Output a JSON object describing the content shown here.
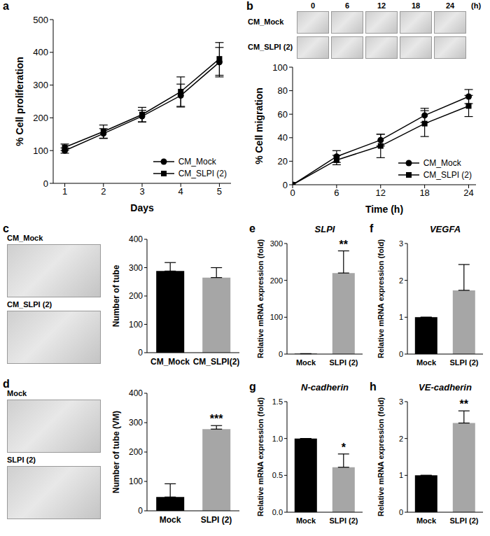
{
  "images": {
    "b": {
      "columns": [
        "0",
        "6",
        "12",
        "18",
        "24"
      ],
      "unit": "(h)",
      "rows": [
        "CM_Mock",
        "CM_SLPI (2)"
      ]
    },
    "c": {
      "rows": [
        "CM_Mock",
        "CM_SLPI (2)"
      ]
    },
    "d": {
      "rows": [
        "Mock",
        "SLPI (2)"
      ]
    }
  },
  "chart_data": [
    {
      "panel": "a",
      "type": "line",
      "x_label": "Days",
      "y_label": "% Cell proliferation",
      "x": [
        1,
        2,
        3,
        4,
        5
      ],
      "xlim": [
        0.7,
        5.3
      ],
      "xticks": [
        1,
        2,
        3,
        4,
        5
      ],
      "ylim": [
        0,
        500
      ],
      "yticks": [
        0,
        100,
        200,
        300,
        400,
        500
      ],
      "legend": "lower right",
      "series": [
        {
          "name": "CM_Mock",
          "color": "#000000",
          "marker": "circle",
          "line_style": "solid",
          "values": [
            100,
            152,
            205,
            268,
            370
          ],
          "errors": [
            8,
            15,
            18,
            35,
            45
          ]
        },
        {
          "name": "CM_SLPI (2)",
          "color": "#000000",
          "marker": "square",
          "line_style": "solid",
          "values": [
            110,
            158,
            210,
            280,
            380
          ],
          "errors": [
            10,
            20,
            22,
            45,
            50
          ]
        }
      ]
    },
    {
      "panel": "b",
      "type": "line",
      "x_label": "Time (h)",
      "y_label": "% Cell migration",
      "x": [
        0,
        6,
        12,
        18,
        24
      ],
      "xlim": [
        0,
        25
      ],
      "xticks": [
        0,
        6,
        12,
        18,
        24
      ],
      "ylim": [
        0,
        100
      ],
      "yticks": [
        0,
        20,
        40,
        60,
        80,
        100
      ],
      "legend": "lower right",
      "series": [
        {
          "name": "CM_Mock",
          "color": "#000000",
          "marker": "circle",
          "line_style": "solid",
          "values": [
            0,
            24,
            38,
            59,
            75
          ],
          "errors": [
            0,
            5,
            5,
            6,
            6
          ]
        },
        {
          "name": "CM_SLPI (2)",
          "color": "#000000",
          "marker": "square",
          "line_style": "solid",
          "values": [
            0,
            21,
            33,
            52,
            67
          ],
          "errors": [
            0,
            4,
            10,
            11,
            9
          ]
        }
      ]
    },
    {
      "panel": "c",
      "type": "bar",
      "y_label": "Number of tube",
      "categories": [
        "CM_Mock",
        "CM_SLPI(2)"
      ],
      "values": [
        288,
        265
      ],
      "errors": [
        30,
        35
      ],
      "colors": [
        "#000000",
        "#a6a6a6"
      ],
      "ylim": [
        0,
        400
      ],
      "yticks": [
        0,
        100,
        200,
        300,
        400
      ]
    },
    {
      "panel": "d",
      "type": "bar",
      "y_label": "Number of tube (VM)",
      "categories": [
        "Mock",
        "SLPI (2)"
      ],
      "values": [
        47,
        278
      ],
      "errors": [
        45,
        12
      ],
      "colors": [
        "#000000",
        "#a6a6a6"
      ],
      "ylim": [
        0,
        400
      ],
      "yticks": [
        0,
        100,
        200,
        300,
        400
      ],
      "annotations": [
        {
          "category": "SLPI (2)",
          "text": "***"
        }
      ]
    },
    {
      "panel": "e",
      "type": "bar",
      "title": "SLPI",
      "y_label": "Relative mRNA expression (fold)",
      "categories": [
        "Mock",
        "SLPI (2)"
      ],
      "values": [
        1,
        220
      ],
      "errors": [
        0,
        60
      ],
      "colors": [
        "#000000",
        "#a6a6a6"
      ],
      "ylim": [
        0,
        300
      ],
      "yticks": [
        0,
        100,
        200,
        300
      ],
      "annotations": [
        {
          "category": "SLPI (2)",
          "text": "**"
        }
      ]
    },
    {
      "panel": "f",
      "type": "bar",
      "title": "VEGFA",
      "y_label": "Relative mRNA expression (fold)",
      "categories": [
        "Mock",
        "SLPI (2)"
      ],
      "values": [
        1,
        1.73
      ],
      "errors": [
        0,
        0.7
      ],
      "colors": [
        "#000000",
        "#a6a6a6"
      ],
      "ylim": [
        0,
        3
      ],
      "yticks": [
        0,
        1,
        2,
        3
      ]
    },
    {
      "panel": "g",
      "type": "bar",
      "title": "N-cadherin",
      "y_label": "Relative mRNA expression (fold)",
      "categories": [
        "Mock",
        "SLPI (2)"
      ],
      "values": [
        1,
        0.61
      ],
      "errors": [
        0,
        0.18
      ],
      "colors": [
        "#000000",
        "#a6a6a6"
      ],
      "ylim": [
        0,
        1.5
      ],
      "yticks": [
        {
          "value": 0,
          "label": "0.0"
        },
        0.5,
        {
          "value": 1,
          "label": "1.0"
        },
        1.5
      ],
      "annotations": [
        {
          "category": "SLPI (2)",
          "text": "*"
        }
      ]
    },
    {
      "panel": "h",
      "type": "bar",
      "title": "VE-cadherin",
      "y_label": "Relative mRNA expression (fold)",
      "categories": [
        "Mock",
        "SLPI (2)"
      ],
      "values": [
        1,
        2.42
      ],
      "errors": [
        0,
        0.33
      ],
      "colors": [
        "#000000",
        "#a6a6a6"
      ],
      "ylim": [
        0,
        3
      ],
      "yticks": [
        0,
        1,
        2,
        3
      ],
      "annotations": [
        {
          "category": "SLPI (2)",
          "text": "**"
        }
      ]
    }
  ]
}
